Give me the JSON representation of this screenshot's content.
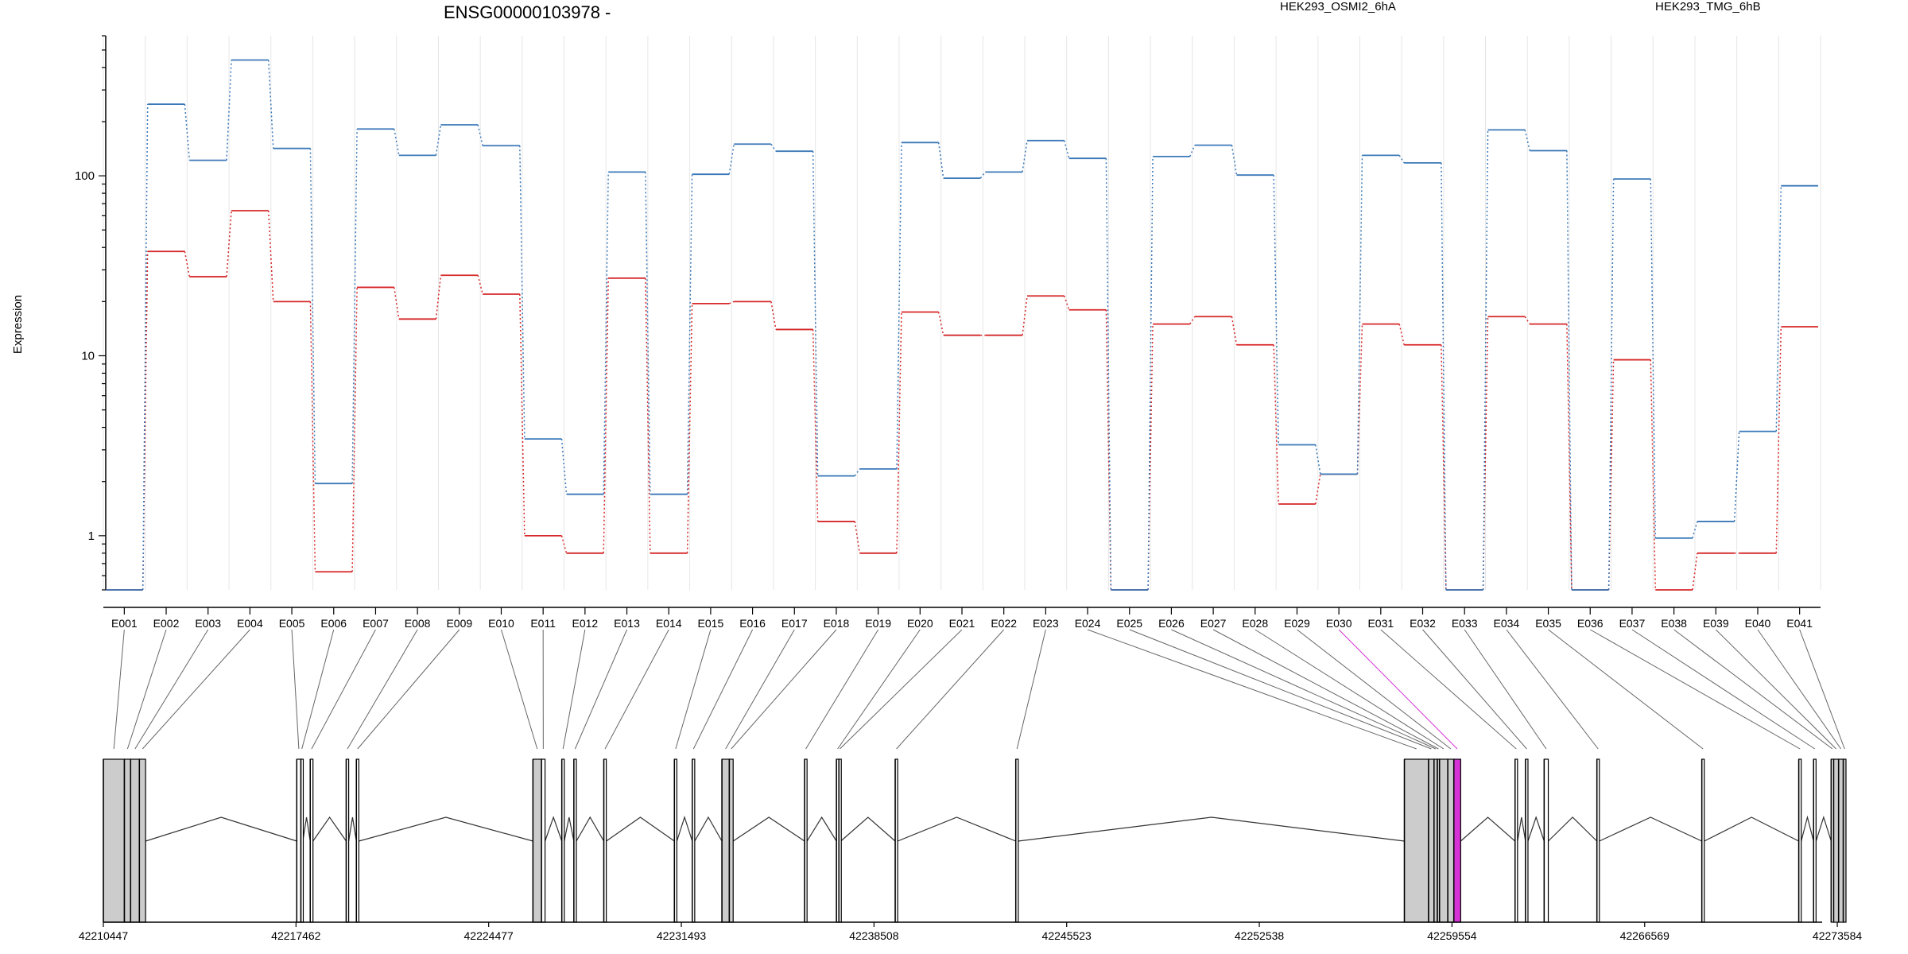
{
  "chart_data": {
    "type": "line",
    "title": "ENSG00000103978 -",
    "ylabel": "Expression",
    "yscale": "log",
    "ylim": [
      0.5,
      600
    ],
    "yticks": [
      1,
      10,
      100
    ],
    "grid": true,
    "legend_position": "top",
    "categories": [
      "E001",
      "E002",
      "E003",
      "E004",
      "E005",
      "E006",
      "E007",
      "E008",
      "E009",
      "E010",
      "E011",
      "E012",
      "E013",
      "E014",
      "E015",
      "E016",
      "E017",
      "E018",
      "E019",
      "E020",
      "E021",
      "E022",
      "E023",
      "E024",
      "E025",
      "E026",
      "E027",
      "E028",
      "E029",
      "E030",
      "E031",
      "E032",
      "E033",
      "E034",
      "E035",
      "E036",
      "E037",
      "E038",
      "E039",
      "E040",
      "E041"
    ],
    "series": [
      {
        "name": "HEK293_OSMI2_6hA",
        "color": "#d62728",
        "values": [
          0.5,
          38,
          27.5,
          64,
          20,
          0.63,
          24,
          16,
          28,
          22,
          1,
          0.8,
          27,
          0.8,
          19.5,
          20,
          14,
          1.2,
          0.8,
          17.5,
          13,
          13,
          21.5,
          18,
          0.5,
          15,
          16.5,
          11.5,
          1.5,
          2.2,
          15,
          11.5,
          0.5,
          16.5,
          15,
          0.5,
          9.5,
          0.5,
          0.8,
          0.8,
          14.5
        ]
      },
      {
        "name": "HEK293_TMG_6hB",
        "color": "#3a78b8",
        "values": [
          0.5,
          250,
          122,
          440,
          142,
          1.95,
          182,
          130,
          192,
          147,
          3.45,
          1.7,
          105,
          1.7,
          102,
          150,
          137,
          2.15,
          2.35,
          153,
          97,
          105,
          157,
          125,
          0.5,
          128,
          148,
          101,
          3.2,
          2.2,
          130,
          118,
          0.5,
          180,
          138,
          0.5,
          96,
          0.97,
          1.2,
          3.8,
          88
        ]
      }
    ],
    "gene_model": {
      "coordinate_ticks": [
        "42210447",
        "42217462",
        "42224477",
        "42231493",
        "42238508",
        "42245523",
        "42252538",
        "42259554",
        "42266569",
        "42273584"
      ],
      "xlim": [
        42210447,
        42273900
      ],
      "highlighted_exon": "E030",
      "highlight_color": "#d633d6",
      "exon_fill": "#cccccc",
      "exons": [
        {
          "start": 42210447,
          "end": 42211213,
          "filled": true
        },
        {
          "start": 42211213,
          "end": 42211440,
          "filled": true
        },
        {
          "start": 42211440,
          "end": 42211760,
          "filled": true
        },
        {
          "start": 42211760,
          "end": 42211985,
          "filled": true
        },
        {
          "start": 42217490,
          "end": 42217640,
          "filled": false
        },
        {
          "start": 42217640,
          "end": 42217710,
          "filled": false
        },
        {
          "start": 42217980,
          "end": 42218080,
          "filled": false
        },
        {
          "start": 42219290,
          "end": 42219380,
          "filled": false
        },
        {
          "start": 42219660,
          "end": 42219750,
          "filled": false
        },
        {
          "start": 42226090,
          "end": 42226400,
          "filled": true
        },
        {
          "start": 42226400,
          "end": 42226530,
          "filled": false
        },
        {
          "start": 42227140,
          "end": 42227230,
          "filled": false
        },
        {
          "start": 42227580,
          "end": 42227670,
          "filled": false
        },
        {
          "start": 42228670,
          "end": 42228760,
          "filled": false
        },
        {
          "start": 42231240,
          "end": 42231330,
          "filled": false
        },
        {
          "start": 42231890,
          "end": 42231980,
          "filled": false
        },
        {
          "start": 42232970,
          "end": 42233240,
          "filled": true
        },
        {
          "start": 42233240,
          "end": 42233380,
          "filled": true
        },
        {
          "start": 42235980,
          "end": 42236070,
          "filled": false
        },
        {
          "start": 42237140,
          "end": 42237230,
          "filled": false
        },
        {
          "start": 42237230,
          "end": 42237300,
          "filled": false
        },
        {
          "start": 42239280,
          "end": 42239370,
          "filled": false
        },
        {
          "start": 42243670,
          "end": 42243760,
          "filled": false
        },
        {
          "start": 42257820,
          "end": 42258700,
          "filled": true
        },
        {
          "start": 42258700,
          "end": 42258900,
          "filled": true
        },
        {
          "start": 42258900,
          "end": 42259020,
          "filled": true
        },
        {
          "start": 42259020,
          "end": 42259100,
          "filled": true
        },
        {
          "start": 42259100,
          "end": 42259400,
          "filled": true
        },
        {
          "start": 42259400,
          "end": 42259620,
          "filled": true
        },
        {
          "start": 42259620,
          "end": 42259870,
          "filled": true,
          "highlight": true
        },
        {
          "start": 42261850,
          "end": 42261940,
          "filled": false
        },
        {
          "start": 42262230,
          "end": 42262320,
          "filled": false
        },
        {
          "start": 42262910,
          "end": 42263060,
          "filled": false
        },
        {
          "start": 42264830,
          "end": 42264920,
          "filled": false
        },
        {
          "start": 42268650,
          "end": 42268740,
          "filled": false
        },
        {
          "start": 42272180,
          "end": 42272270,
          "filled": false
        },
        {
          "start": 42272720,
          "end": 42272810,
          "filled": false
        },
        {
          "start": 42273360,
          "end": 42273450,
          "filled": false
        },
        {
          "start": 42273450,
          "end": 42273630,
          "filled": true
        },
        {
          "start": 42273630,
          "end": 42273800,
          "filled": true
        },
        {
          "start": 42273800,
          "end": 42273900,
          "filled": true
        }
      ]
    }
  }
}
